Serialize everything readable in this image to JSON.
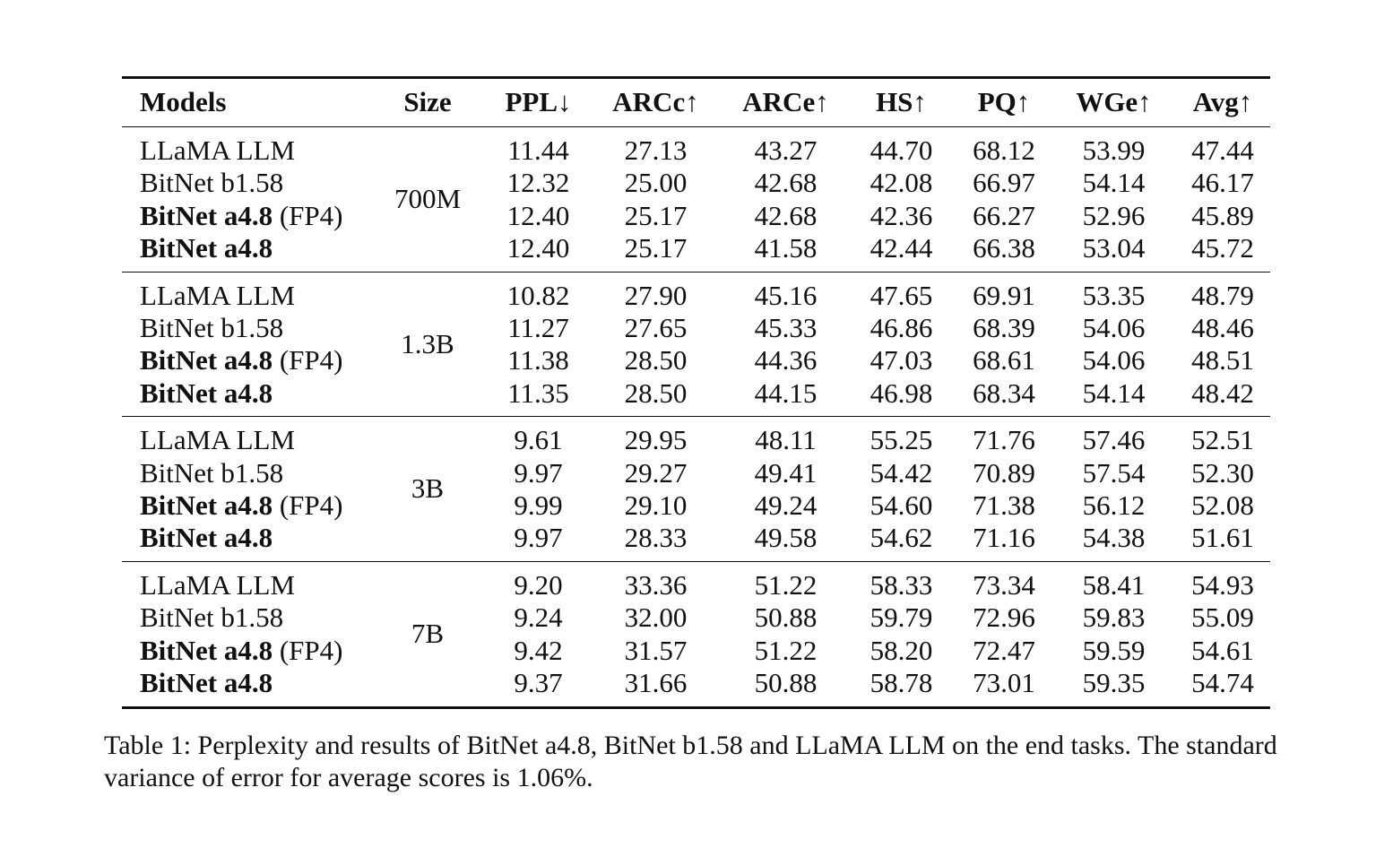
{
  "table": {
    "headers": [
      "Models",
      "Size",
      "PPL↓",
      "ARCc↑",
      "ARCe↑",
      "HS↑",
      "PQ↑",
      "WGe↑",
      "Avg↑"
    ],
    "groups": [
      {
        "size": "700M",
        "rows": [
          {
            "model": "LLaMA LLM",
            "suffix": "",
            "bold": false,
            "values": [
              "11.44",
              "27.13",
              "43.27",
              "44.70",
              "68.12",
              "53.99",
              "47.44"
            ]
          },
          {
            "model": "BitNet b1.58",
            "suffix": "",
            "bold": false,
            "values": [
              "12.32",
              "25.00",
              "42.68",
              "42.08",
              "66.97",
              "54.14",
              "46.17"
            ]
          },
          {
            "model": "BitNet a4.8",
            "suffix": " (FP4)",
            "bold": true,
            "values": [
              "12.40",
              "25.17",
              "42.68",
              "42.36",
              "66.27",
              "52.96",
              "45.89"
            ]
          },
          {
            "model": "BitNet a4.8",
            "suffix": "",
            "bold": true,
            "values": [
              "12.40",
              "25.17",
              "41.58",
              "42.44",
              "66.38",
              "53.04",
              "45.72"
            ]
          }
        ]
      },
      {
        "size": "1.3B",
        "rows": [
          {
            "model": "LLaMA LLM",
            "suffix": "",
            "bold": false,
            "values": [
              "10.82",
              "27.90",
              "45.16",
              "47.65",
              "69.91",
              "53.35",
              "48.79"
            ]
          },
          {
            "model": "BitNet b1.58",
            "suffix": "",
            "bold": false,
            "values": [
              "11.27",
              "27.65",
              "45.33",
              "46.86",
              "68.39",
              "54.06",
              "48.46"
            ]
          },
          {
            "model": "BitNet a4.8",
            "suffix": " (FP4)",
            "bold": true,
            "values": [
              "11.38",
              "28.50",
              "44.36",
              "47.03",
              "68.61",
              "54.06",
              "48.51"
            ]
          },
          {
            "model": "BitNet a4.8",
            "suffix": "",
            "bold": true,
            "values": [
              "11.35",
              "28.50",
              "44.15",
              "46.98",
              "68.34",
              "54.14",
              "48.42"
            ]
          }
        ]
      },
      {
        "size": "3B",
        "rows": [
          {
            "model": "LLaMA LLM",
            "suffix": "",
            "bold": false,
            "values": [
              "9.61",
              "29.95",
              "48.11",
              "55.25",
              "71.76",
              "57.46",
              "52.51"
            ]
          },
          {
            "model": "BitNet b1.58",
            "suffix": "",
            "bold": false,
            "values": [
              "9.97",
              "29.27",
              "49.41",
              "54.42",
              "70.89",
              "57.54",
              "52.30"
            ]
          },
          {
            "model": "BitNet a4.8",
            "suffix": " (FP4)",
            "bold": true,
            "values": [
              "9.99",
              "29.10",
              "49.24",
              "54.60",
              "71.38",
              "56.12",
              "52.08"
            ]
          },
          {
            "model": "BitNet a4.8",
            "suffix": "",
            "bold": true,
            "values": [
              "9.97",
              "28.33",
              "49.58",
              "54.62",
              "71.16",
              "54.38",
              "51.61"
            ]
          }
        ]
      },
      {
        "size": "7B",
        "rows": [
          {
            "model": "LLaMA LLM",
            "suffix": "",
            "bold": false,
            "values": [
              "9.20",
              "33.36",
              "51.22",
              "58.33",
              "73.34",
              "58.41",
              "54.93"
            ]
          },
          {
            "model": "BitNet b1.58",
            "suffix": "",
            "bold": false,
            "values": [
              "9.24",
              "32.00",
              "50.88",
              "59.79",
              "72.96",
              "59.83",
              "55.09"
            ]
          },
          {
            "model": "BitNet a4.8",
            "suffix": " (FP4)",
            "bold": true,
            "values": [
              "9.42",
              "31.57",
              "51.22",
              "58.20",
              "72.47",
              "59.59",
              "54.61"
            ]
          },
          {
            "model": "BitNet a4.8",
            "suffix": "",
            "bold": true,
            "values": [
              "9.37",
              "31.66",
              "50.88",
              "58.78",
              "73.01",
              "59.35",
              "54.74"
            ]
          }
        ]
      }
    ]
  },
  "caption": "Table 1: Perplexity and results of BitNet a4.8, BitNet b1.58 and LLaMA LLM on the end tasks. The standard variance of error for average scores is 1.06%."
}
